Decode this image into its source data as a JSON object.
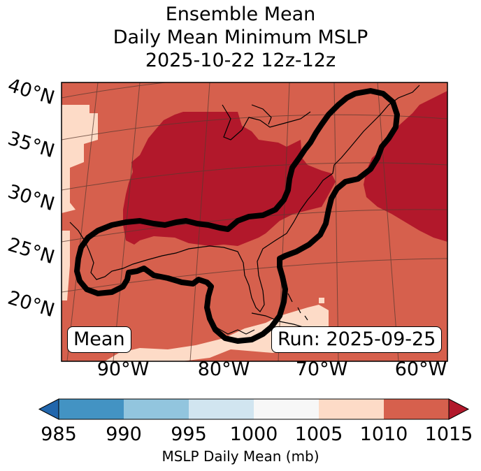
{
  "title": {
    "line1": "Ensemble Mean",
    "line2": "Daily Mean Minimum MSLP",
    "line3": "2025-10-22 12z-12z"
  },
  "lat_labels": [
    "40°N",
    "35°N",
    "30°N",
    "25°N",
    "20°N"
  ],
  "lon_labels": [
    "90°W",
    "80°W",
    "70°W",
    "60°W"
  ],
  "mean_box": "Mean",
  "run_box": "Run: 2025-09-25",
  "colorbar": {
    "label": "MSLP Daily Mean (mb)",
    "ticks": [
      "985",
      "990",
      "995",
      "1000",
      "1005",
      "1010",
      "1015"
    ],
    "bins": [
      {
        "range": [
          985,
          990
        ],
        "color": "#4393c3"
      },
      {
        "range": [
          990,
          995
        ],
        "color": "#92c5de"
      },
      {
        "range": [
          995,
          1000
        ],
        "color": "#d1e5f0"
      },
      {
        "range": [
          1000,
          1005
        ],
        "color": "#f7f7f7"
      },
      {
        "range": [
          1005,
          1010
        ],
        "color": "#fddbc7"
      },
      {
        "range": [
          1010,
          1015
        ],
        "color": "#d6604d"
      }
    ],
    "under_color": "#2166ac",
    "over_color": "#b2182b"
  },
  "field_colors": {
    "bin_1005_1010": "#fddbc7",
    "bin_1010_1015": "#d6604d",
    "above_1015": "#b2182b"
  },
  "contour_color": "#000000",
  "coastline_color": "#000000",
  "gridline_color": "#5a3a30"
}
